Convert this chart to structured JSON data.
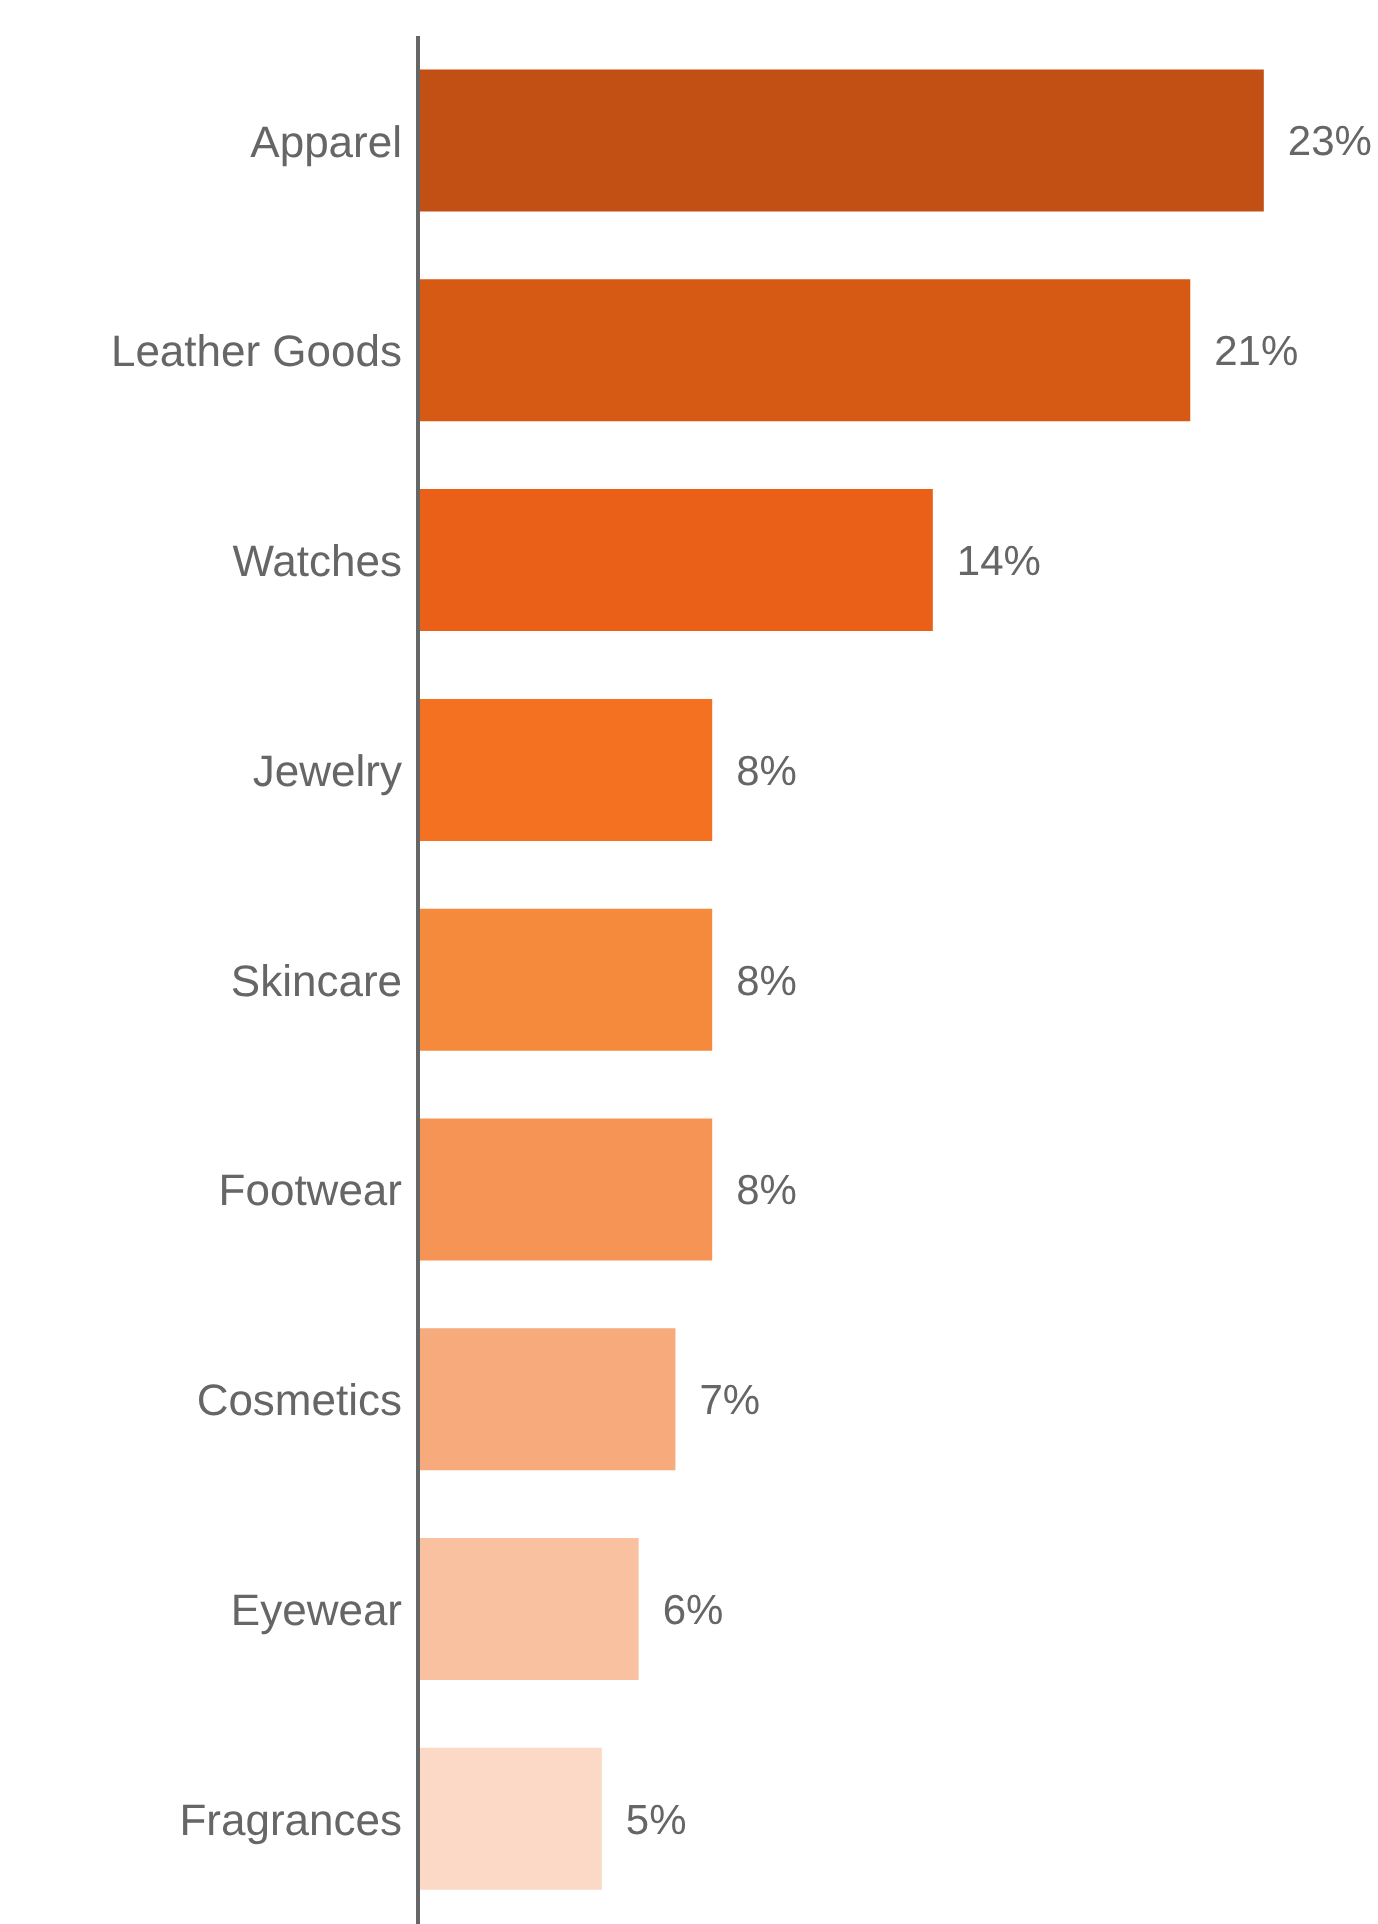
{
  "chart_data": {
    "type": "bar",
    "orientation": "horizontal",
    "categories": [
      "Apparel",
      "Leather Goods",
      "Watches",
      "Jewelry",
      "Skincare",
      "Footwear",
      "Cosmetics",
      "Eyewear",
      "Fragrances"
    ],
    "values": [
      23,
      21,
      14,
      8,
      8,
      8,
      7,
      6,
      5
    ],
    "value_labels": [
      "23%",
      "21%",
      "14%",
      "8%",
      "8%",
      "8%",
      "7%",
      "6%",
      "5%"
    ],
    "colors": [
      "#c25014",
      "#d65914",
      "#ea6019",
      "#f37120",
      "#f68a3c",
      "#f69456",
      "#f7aa7b",
      "#f9c19f",
      "#fcd9c6"
    ]
  }
}
